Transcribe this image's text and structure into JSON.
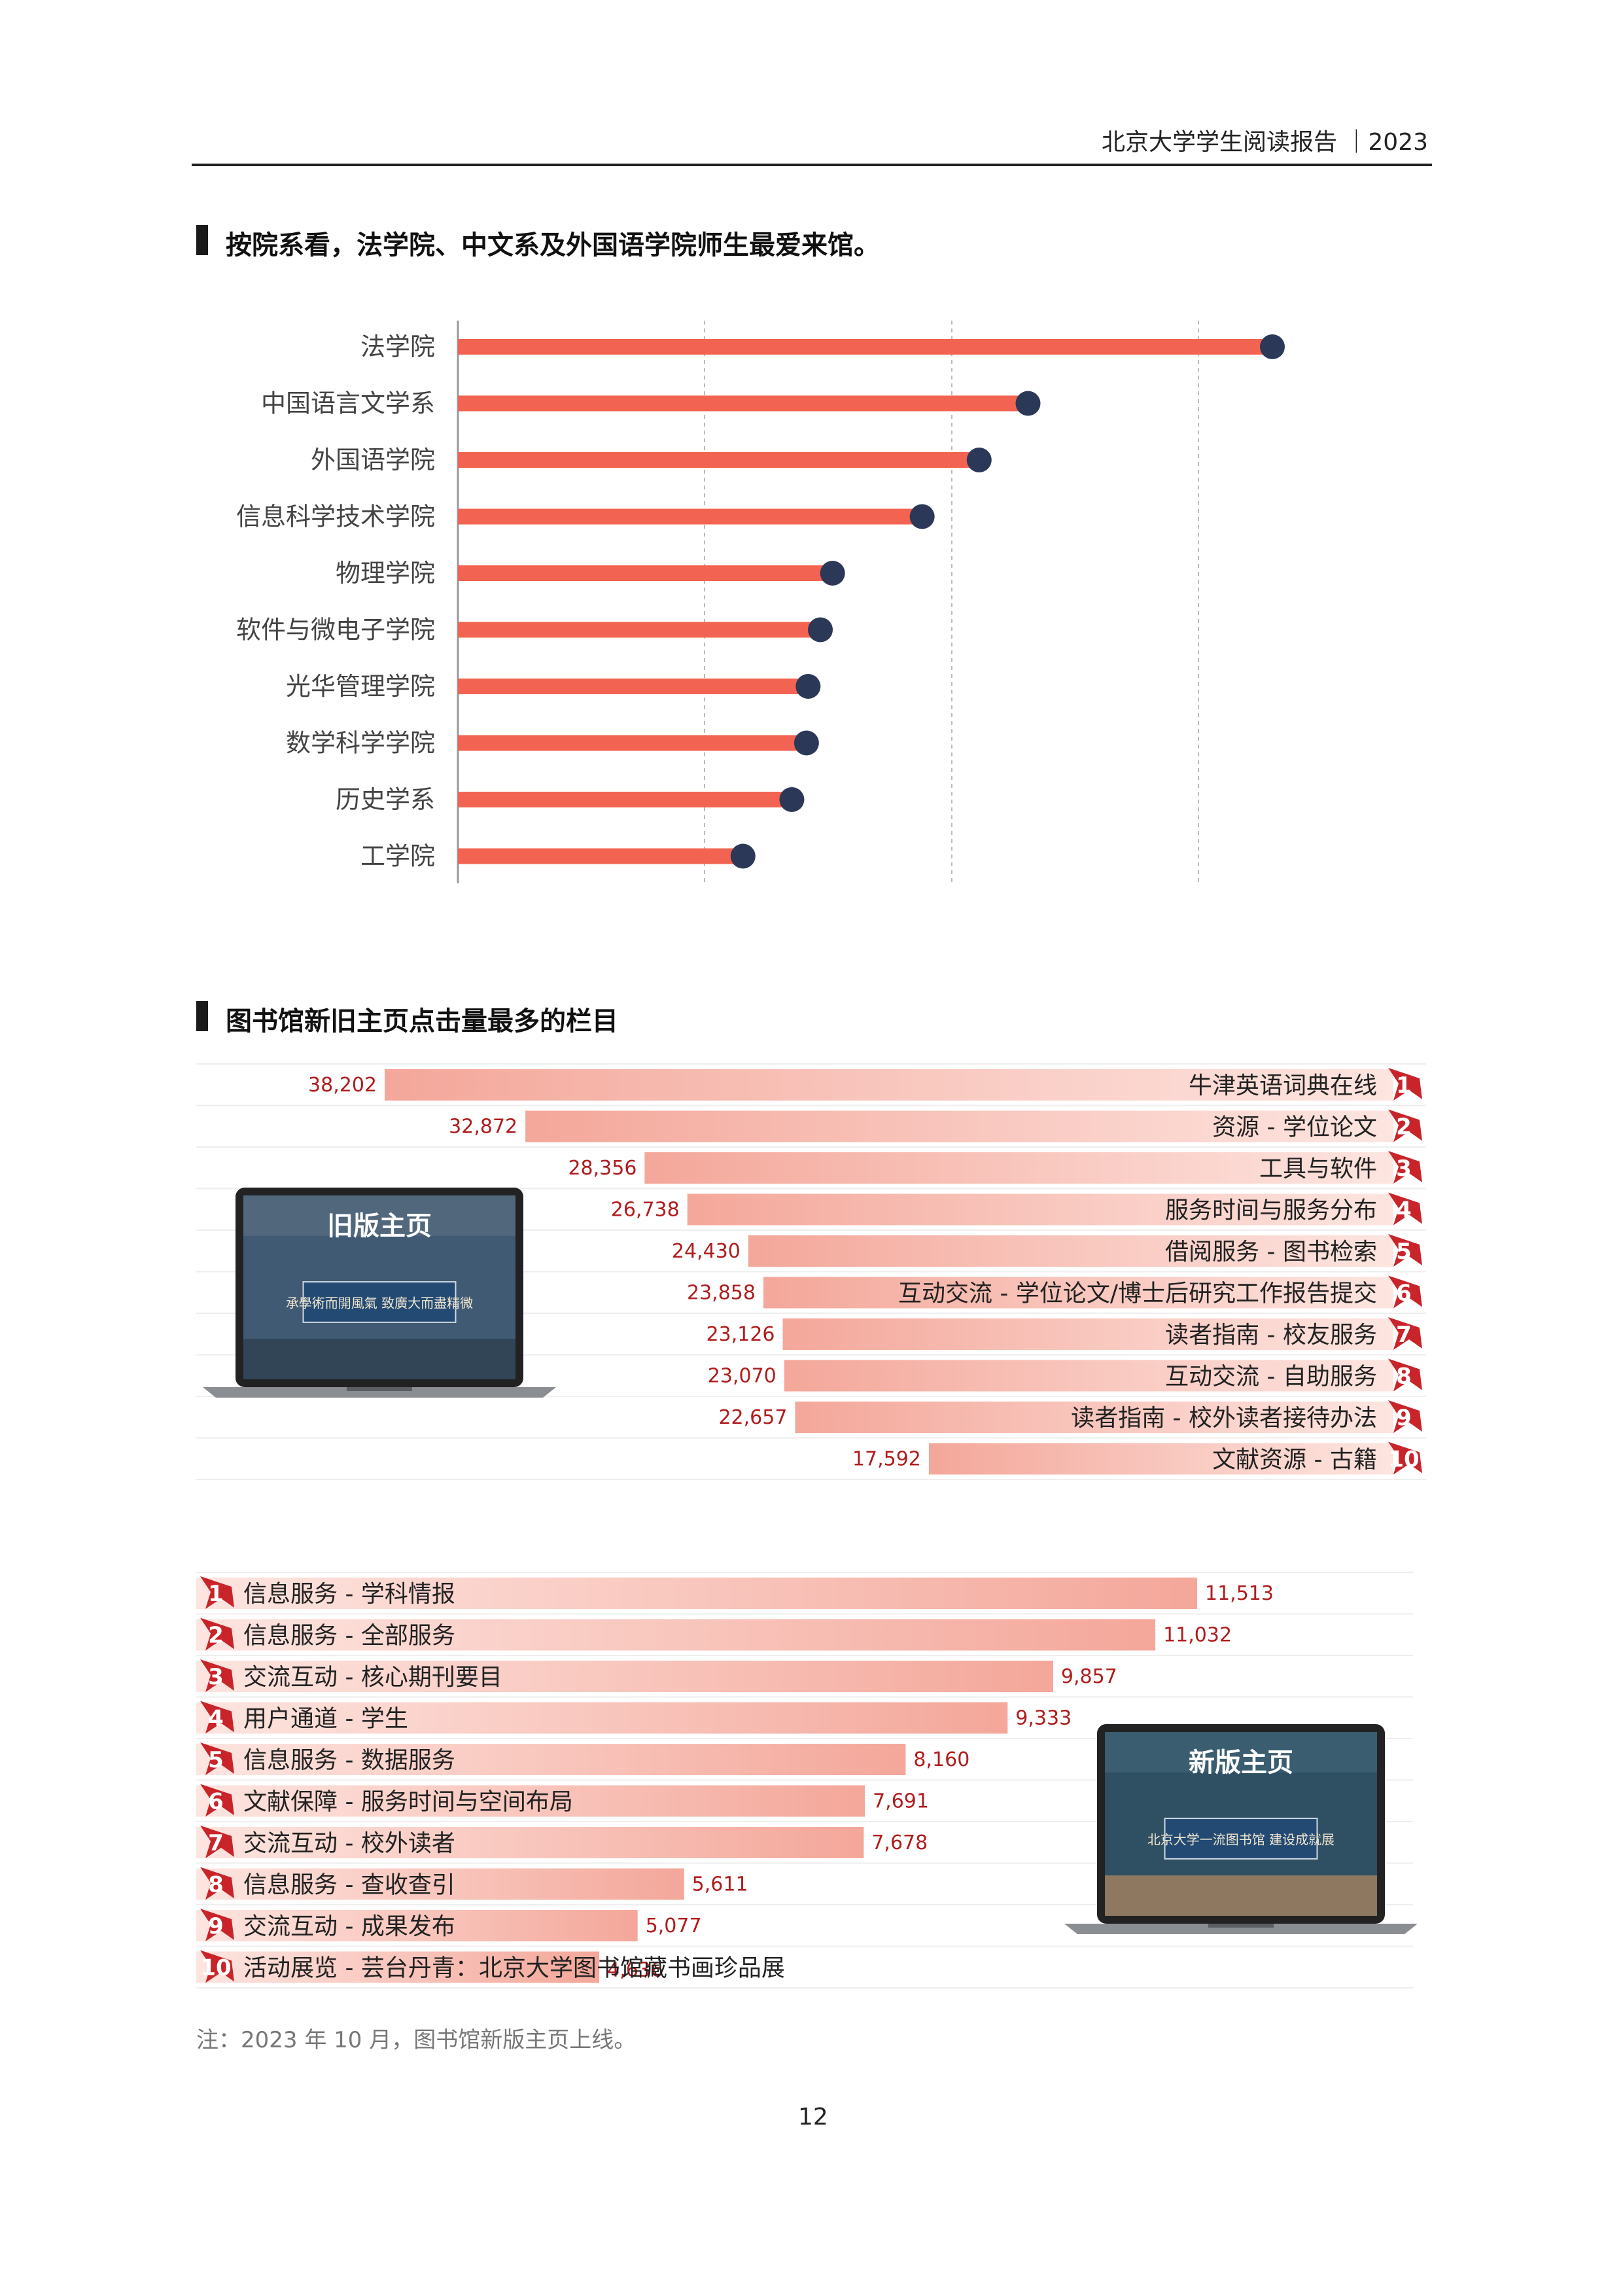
{
  "header": {
    "title": "北京大学学生阅读报告 ｜2023"
  },
  "section1": {
    "title": "按院系看，法学院、中文系及外国语学院师生最爱来馆。"
  },
  "chart_data": [
    {
      "type": "bar",
      "orientation": "horizontal",
      "title": "按院系看，法学院、中文系及外国语学院师生最爱来馆。",
      "categories": [
        "法学院",
        "中国语言文学系",
        "外国语学院",
        "信息科学技术学院",
        "物理学院",
        "软件与微电子学院",
        "光华管理学院",
        "数学科学学院",
        "历史学系",
        "工学院"
      ],
      "values": [
        100,
        70,
        64,
        57,
        46,
        44.5,
        43,
        42.8,
        41,
        35
      ],
      "xlim": [
        0,
        110
      ],
      "grid": true,
      "colors": {
        "bar": "#f26451",
        "dot": "#2b3857"
      }
    },
    {
      "type": "bar",
      "orientation": "horizontal",
      "title": "图书馆新旧主页点击量最多的栏目",
      "subtitle": "旧版主页",
      "categories": [
        "牛津英语词典在线",
        "资源 - 学位论文",
        "工具与软件",
        "服务时间与服务分布",
        "借阅服务 - 图书检索",
        "互动交流 - 学位论文/博士后研究工作报告提交",
        "读者指南 - 校友服务",
        "互动交流 - 自助服务",
        "读者指南 - 校外读者接待办法",
        "文献资源 - 古籍"
      ],
      "ranks": [
        "1",
        "2",
        "3",
        "4",
        "5",
        "6",
        "7",
        "8",
        "9",
        "10"
      ],
      "values": [
        38202,
        32872,
        28356,
        26738,
        24430,
        23858,
        23126,
        23070,
        22657,
        17592
      ],
      "value_labels": [
        "38,202",
        "32,872",
        "28,356",
        "26,738",
        "24,430",
        "23,858",
        "23,126",
        "23,070",
        "22,657",
        "17,592"
      ],
      "colors": {
        "bar": "#f4a79a",
        "rank": "#c8242a"
      }
    },
    {
      "type": "bar",
      "orientation": "horizontal",
      "subtitle": "新版主页",
      "categories": [
        "信息服务 - 学科情报",
        "信息服务 - 全部服务",
        "交流互动 - 核心期刊要目",
        "用户通道 - 学生",
        "信息服务 - 数据服务",
        "文献保障 - 服务时间与空间布局",
        "交流互动 - 校外读者",
        "信息服务 - 查收查引",
        "交流互动 - 成果发布",
        "活动展览 - 芸台丹青：北京大学图书馆藏书画珍品展"
      ],
      "ranks": [
        "1",
        "2",
        "3",
        "4",
        "5",
        "6",
        "7",
        "8",
        "9",
        "10"
      ],
      "values": [
        11513,
        11032,
        9857,
        9333,
        8160,
        7691,
        7678,
        5611,
        5077,
        4636
      ],
      "value_labels": [
        "11,513",
        "11,032",
        "9,857",
        "9,333",
        "8,160",
        "7,691",
        "7,678",
        "5,611",
        "5,077",
        "4,636"
      ],
      "colors": {
        "bar": "#f4a79a",
        "rank": "#c8242a"
      }
    }
  ],
  "section2": {
    "title": "图书馆新旧主页点击量最多的栏目"
  },
  "laptop_old": {
    "title": "旧版主页",
    "screen_text": "承學術而開風氣 致廣大而盡精微"
  },
  "laptop_new": {
    "title": "新版主页",
    "screen_text": "北京大学一流图书馆 建设成就展"
  },
  "note": "注：2023 年 10 月，图书馆新版主页上线。",
  "page_number": "12"
}
